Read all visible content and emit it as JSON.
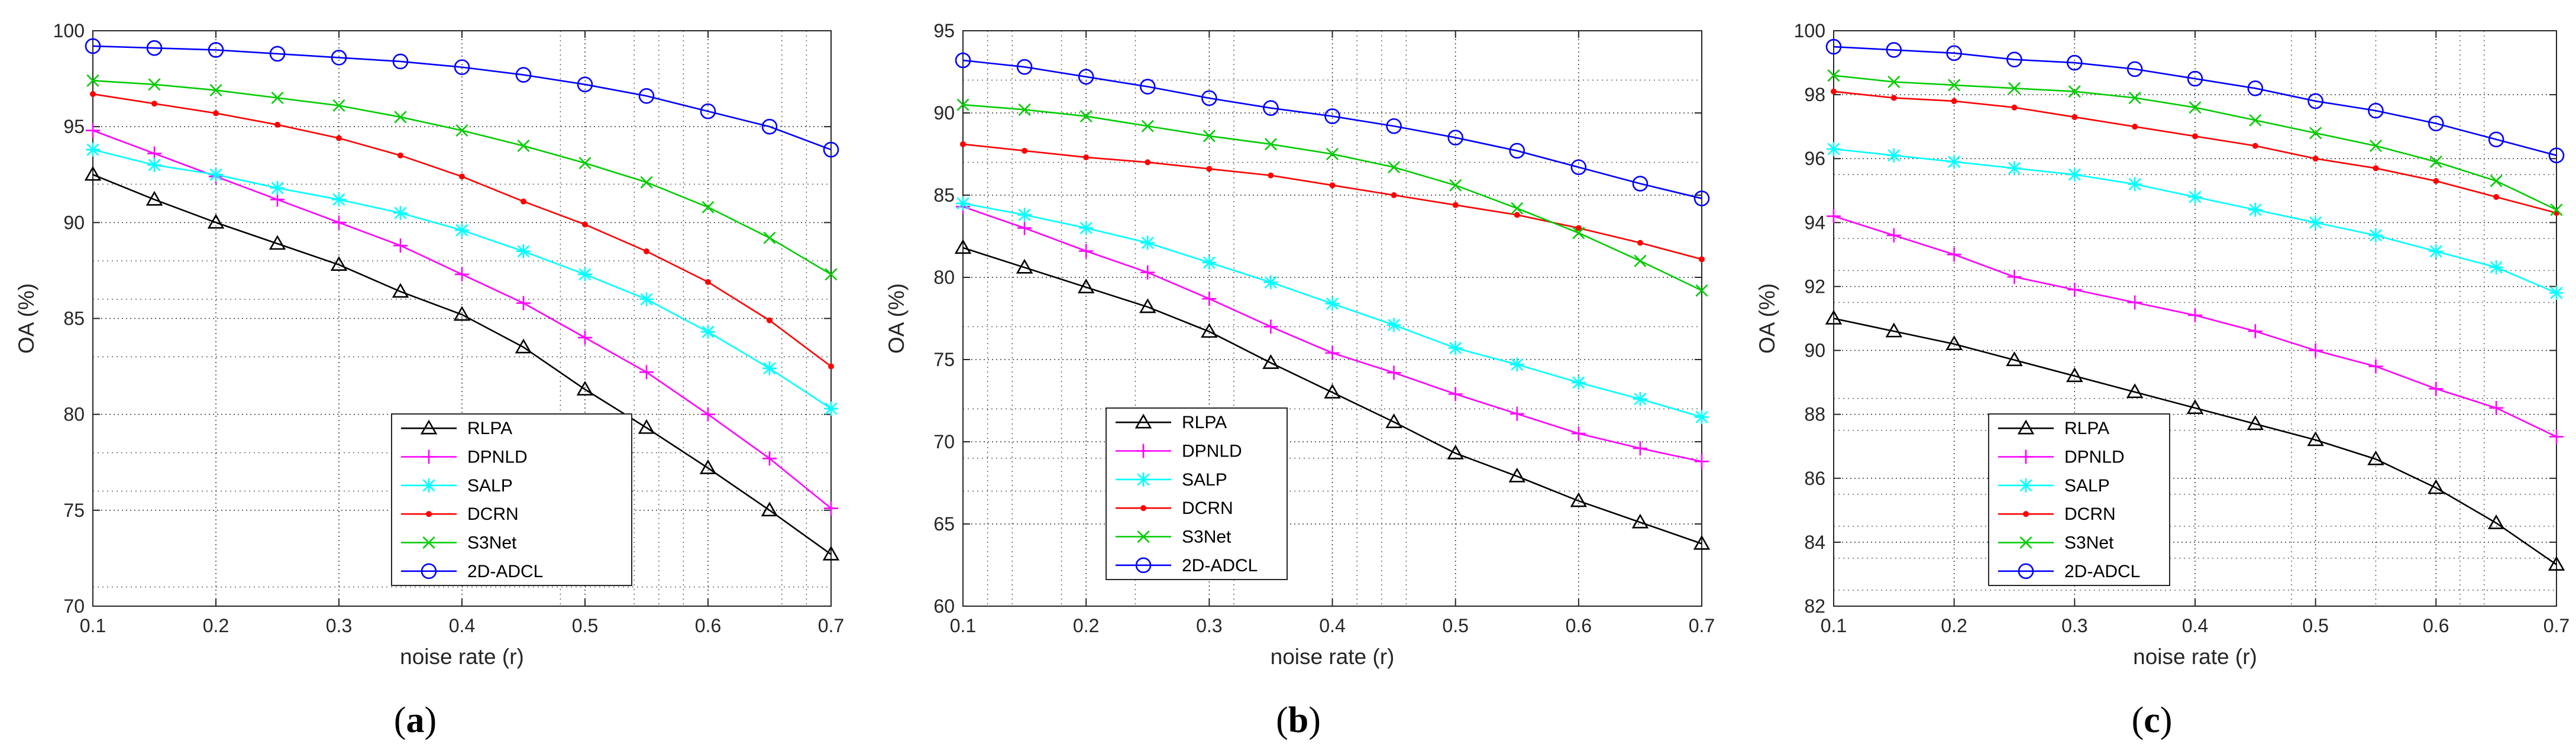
{
  "figure": {
    "panels": [
      {
        "label_open": "(",
        "label_letter": "a",
        "label_close": ")"
      },
      {
        "label_open": "(",
        "label_letter": "b",
        "label_close": ")"
      },
      {
        "label_open": "(",
        "label_letter": "c",
        "label_close": ")"
      }
    ]
  },
  "styles": {
    "RLPA": {
      "color": "#000000",
      "marker": "triangle"
    },
    "DPNLD": {
      "color": "#ff00ff",
      "marker": "plus"
    },
    "SALP": {
      "color": "#00ffff",
      "marker": "asterisk"
    },
    "DCRN": {
      "color": "#ff0000",
      "marker": "dot"
    },
    "S3Net": {
      "color": "#00cc00",
      "marker": "x"
    },
    "2D-ADCL": {
      "color": "#0000ff",
      "marker": "circle"
    }
  },
  "chart_data": [
    {
      "type": "line",
      "title": "",
      "xlabel": "noise rate (r)",
      "ylabel": "OA (%)",
      "xlim": [
        0.1,
        0.7
      ],
      "ylim": [
        70,
        100
      ],
      "xticks": [
        "0.1",
        "0.2",
        "0.3",
        "0.4",
        "0.5",
        "0.6",
        "0.7"
      ],
      "yticks": [
        "70",
        "75",
        "80",
        "85",
        "90",
        "95",
        "100"
      ],
      "x": [
        0.1,
        0.15,
        0.2,
        0.25,
        0.3,
        0.35,
        0.4,
        0.45,
        0.5,
        0.55,
        0.6,
        0.65,
        0.7
      ],
      "legend_position": "lower-center",
      "series": [
        {
          "name": "RLPA",
          "values": [
            92.5,
            91.2,
            90.0,
            88.9,
            87.8,
            86.4,
            85.2,
            83.5,
            81.3,
            79.3,
            77.2,
            75.0,
            72.7
          ]
        },
        {
          "name": "DPNLD",
          "values": [
            94.8,
            93.6,
            92.4,
            91.2,
            90.0,
            88.8,
            87.3,
            85.8,
            84.0,
            82.2,
            80.0,
            77.7,
            75.1
          ]
        },
        {
          "name": "SALP",
          "values": [
            93.8,
            93.0,
            92.5,
            91.8,
            91.2,
            90.5,
            89.6,
            88.5,
            87.3,
            86.0,
            84.3,
            82.4,
            80.3
          ]
        },
        {
          "name": "DCRN",
          "values": [
            96.7,
            96.2,
            95.7,
            95.1,
            94.4,
            93.5,
            92.4,
            91.1,
            89.9,
            88.5,
            86.9,
            84.9,
            82.5
          ]
        },
        {
          "name": "S3Net",
          "values": [
            97.4,
            97.2,
            96.9,
            96.5,
            96.1,
            95.5,
            94.8,
            94.0,
            93.1,
            92.1,
            90.8,
            89.2,
            87.3
          ]
        },
        {
          "name": "2D-ADCL",
          "values": [
            99.2,
            99.1,
            99.0,
            98.8,
            98.6,
            98.4,
            98.1,
            97.7,
            97.2,
            96.6,
            95.8,
            95.0,
            93.8
          ]
        }
      ]
    },
    {
      "type": "line",
      "title": "",
      "xlabel": "noise rate (r)",
      "ylabel": "OA (%)",
      "xlim": [
        0.1,
        0.7
      ],
      "ylim": [
        60,
        95
      ],
      "xticks": [
        "0.1",
        "0.2",
        "0.3",
        "0.4",
        "0.5",
        "0.6",
        "0.7"
      ],
      "yticks": [
        "60",
        "65",
        "70",
        "75",
        "80",
        "85",
        "90",
        "95"
      ],
      "x": [
        0.1,
        0.15,
        0.2,
        0.25,
        0.3,
        0.35,
        0.4,
        0.45,
        0.5,
        0.55,
        0.6,
        0.65,
        0.7
      ],
      "legend_position": "lower-center",
      "series": [
        {
          "name": "RLPA",
          "values": [
            81.8,
            80.6,
            79.4,
            78.2,
            76.7,
            74.8,
            73.0,
            71.2,
            69.3,
            67.9,
            66.4,
            65.1,
            63.8
          ]
        },
        {
          "name": "DPNLD",
          "values": [
            84.3,
            83.0,
            81.6,
            80.3,
            78.7,
            77.0,
            75.4,
            74.2,
            72.9,
            71.7,
            70.5,
            69.6,
            68.8
          ]
        },
        {
          "name": "SALP",
          "values": [
            84.5,
            83.8,
            83.0,
            82.1,
            80.9,
            79.7,
            78.4,
            77.1,
            75.7,
            74.7,
            73.6,
            72.6,
            71.5
          ]
        },
        {
          "name": "DCRN",
          "values": [
            88.1,
            87.7,
            87.3,
            87.0,
            86.6,
            86.2,
            85.6,
            85.0,
            84.4,
            83.8,
            83.0,
            82.1,
            81.1
          ]
        },
        {
          "name": "S3Net",
          "values": [
            90.5,
            90.2,
            89.8,
            89.2,
            88.6,
            88.1,
            87.5,
            86.7,
            85.6,
            84.2,
            82.7,
            81.0,
            79.2
          ]
        },
        {
          "name": "2D-ADCL",
          "values": [
            93.2,
            92.8,
            92.2,
            91.6,
            90.9,
            90.3,
            89.8,
            89.2,
            88.5,
            87.7,
            86.7,
            85.7,
            84.8
          ]
        }
      ]
    },
    {
      "type": "line",
      "title": "",
      "xlabel": "noise rate (r)",
      "ylabel": "OA (%)",
      "xlim": [
        0.1,
        0.7
      ],
      "ylim": [
        82,
        100
      ],
      "xticks": [
        "0.1",
        "0.2",
        "0.3",
        "0.4",
        "0.5",
        "0.6",
        "0.7"
      ],
      "yticks": [
        "82",
        "84",
        "86",
        "88",
        "90",
        "92",
        "94",
        "96",
        "98",
        "100"
      ],
      "x": [
        0.1,
        0.15,
        0.2,
        0.25,
        0.3,
        0.35,
        0.4,
        0.45,
        0.5,
        0.55,
        0.6,
        0.65,
        0.7
      ],
      "legend_position": "lower-left",
      "series": [
        {
          "name": "RLPA",
          "values": [
            91.0,
            90.6,
            90.2,
            89.7,
            89.2,
            88.7,
            88.2,
            87.7,
            87.2,
            86.6,
            85.7,
            84.6,
            83.3
          ]
        },
        {
          "name": "DPNLD",
          "values": [
            94.2,
            93.6,
            93.0,
            92.3,
            91.9,
            91.5,
            91.1,
            90.6,
            90.0,
            89.5,
            88.8,
            88.2,
            87.3
          ]
        },
        {
          "name": "SALP",
          "values": [
            96.3,
            96.1,
            95.9,
            95.7,
            95.5,
            95.2,
            94.8,
            94.4,
            94.0,
            93.6,
            93.1,
            92.6,
            91.8
          ]
        },
        {
          "name": "DCRN",
          "values": [
            98.1,
            97.9,
            97.8,
            97.6,
            97.3,
            97.0,
            96.7,
            96.4,
            96.0,
            95.7,
            95.3,
            94.8,
            94.3
          ]
        },
        {
          "name": "S3Net",
          "values": [
            98.6,
            98.4,
            98.3,
            98.2,
            98.1,
            97.9,
            97.6,
            97.2,
            96.8,
            96.4,
            95.9,
            95.3,
            94.4
          ]
        },
        {
          "name": "2D-ADCL",
          "values": [
            99.5,
            99.4,
            99.3,
            99.1,
            99.0,
            98.8,
            98.5,
            98.2,
            97.8,
            97.5,
            97.1,
            96.6,
            96.1
          ]
        }
      ]
    }
  ]
}
